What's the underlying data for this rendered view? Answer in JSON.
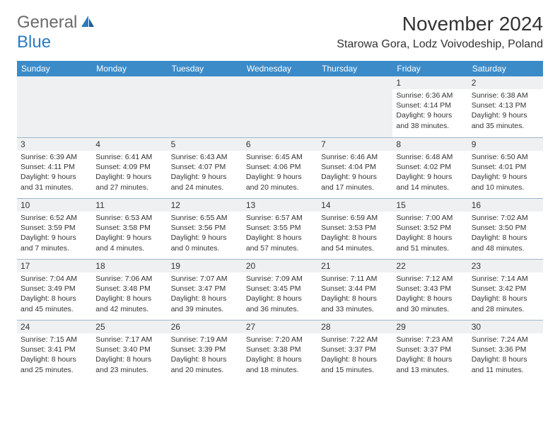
{
  "logo": {
    "general": "General",
    "blue": "Blue"
  },
  "header": {
    "month_title": "November 2024",
    "location": "Starowa Gora, Lodz Voivodeship, Poland"
  },
  "style": {
    "header_bg": "#3b8bc9",
    "header_text": "#ffffff",
    "border_color": "#9fb8cc",
    "daynum_bg": "#eef0f2",
    "text_color": "#333333",
    "logo_gray": "#6a6a6a",
    "logo_blue": "#2b7bbf",
    "font_family": "Arial",
    "weekday_fontsize": 12,
    "info_fontsize": 10.5,
    "title_fontsize": 28,
    "location_fontsize": 16
  },
  "weekdays": [
    "Sunday",
    "Monday",
    "Tuesday",
    "Wednesday",
    "Thursday",
    "Friday",
    "Saturday"
  ],
  "days": [
    {
      "n": 1,
      "sr": "6:36 AM",
      "ss": "4:14 PM",
      "dl": "9 hours and 38 minutes."
    },
    {
      "n": 2,
      "sr": "6:38 AM",
      "ss": "4:13 PM",
      "dl": "9 hours and 35 minutes."
    },
    {
      "n": 3,
      "sr": "6:39 AM",
      "ss": "4:11 PM",
      "dl": "9 hours and 31 minutes."
    },
    {
      "n": 4,
      "sr": "6:41 AM",
      "ss": "4:09 PM",
      "dl": "9 hours and 27 minutes."
    },
    {
      "n": 5,
      "sr": "6:43 AM",
      "ss": "4:07 PM",
      "dl": "9 hours and 24 minutes."
    },
    {
      "n": 6,
      "sr": "6:45 AM",
      "ss": "4:06 PM",
      "dl": "9 hours and 20 minutes."
    },
    {
      "n": 7,
      "sr": "6:46 AM",
      "ss": "4:04 PM",
      "dl": "9 hours and 17 minutes."
    },
    {
      "n": 8,
      "sr": "6:48 AM",
      "ss": "4:02 PM",
      "dl": "9 hours and 14 minutes."
    },
    {
      "n": 9,
      "sr": "6:50 AM",
      "ss": "4:01 PM",
      "dl": "9 hours and 10 minutes."
    },
    {
      "n": 10,
      "sr": "6:52 AM",
      "ss": "3:59 PM",
      "dl": "9 hours and 7 minutes."
    },
    {
      "n": 11,
      "sr": "6:53 AM",
      "ss": "3:58 PM",
      "dl": "9 hours and 4 minutes."
    },
    {
      "n": 12,
      "sr": "6:55 AM",
      "ss": "3:56 PM",
      "dl": "9 hours and 0 minutes."
    },
    {
      "n": 13,
      "sr": "6:57 AM",
      "ss": "3:55 PM",
      "dl": "8 hours and 57 minutes."
    },
    {
      "n": 14,
      "sr": "6:59 AM",
      "ss": "3:53 PM",
      "dl": "8 hours and 54 minutes."
    },
    {
      "n": 15,
      "sr": "7:00 AM",
      "ss": "3:52 PM",
      "dl": "8 hours and 51 minutes."
    },
    {
      "n": 16,
      "sr": "7:02 AM",
      "ss": "3:50 PM",
      "dl": "8 hours and 48 minutes."
    },
    {
      "n": 17,
      "sr": "7:04 AM",
      "ss": "3:49 PM",
      "dl": "8 hours and 45 minutes."
    },
    {
      "n": 18,
      "sr": "7:06 AM",
      "ss": "3:48 PM",
      "dl": "8 hours and 42 minutes."
    },
    {
      "n": 19,
      "sr": "7:07 AM",
      "ss": "3:47 PM",
      "dl": "8 hours and 39 minutes."
    },
    {
      "n": 20,
      "sr": "7:09 AM",
      "ss": "3:45 PM",
      "dl": "8 hours and 36 minutes."
    },
    {
      "n": 21,
      "sr": "7:11 AM",
      "ss": "3:44 PM",
      "dl": "8 hours and 33 minutes."
    },
    {
      "n": 22,
      "sr": "7:12 AM",
      "ss": "3:43 PM",
      "dl": "8 hours and 30 minutes."
    },
    {
      "n": 23,
      "sr": "7:14 AM",
      "ss": "3:42 PM",
      "dl": "8 hours and 28 minutes."
    },
    {
      "n": 24,
      "sr": "7:15 AM",
      "ss": "3:41 PM",
      "dl": "8 hours and 25 minutes."
    },
    {
      "n": 25,
      "sr": "7:17 AM",
      "ss": "3:40 PM",
      "dl": "8 hours and 23 minutes."
    },
    {
      "n": 26,
      "sr": "7:19 AM",
      "ss": "3:39 PM",
      "dl": "8 hours and 20 minutes."
    },
    {
      "n": 27,
      "sr": "7:20 AM",
      "ss": "3:38 PM",
      "dl": "8 hours and 18 minutes."
    },
    {
      "n": 28,
      "sr": "7:22 AM",
      "ss": "3:37 PM",
      "dl": "8 hours and 15 minutes."
    },
    {
      "n": 29,
      "sr": "7:23 AM",
      "ss": "3:37 PM",
      "dl": "8 hours and 13 minutes."
    },
    {
      "n": 30,
      "sr": "7:24 AM",
      "ss": "3:36 PM",
      "dl": "8 hours and 11 minutes."
    }
  ],
  "labels": {
    "sunrise": "Sunrise:",
    "sunset": "Sunset:",
    "daylight": "Daylight:"
  },
  "first_day_column": 5
}
